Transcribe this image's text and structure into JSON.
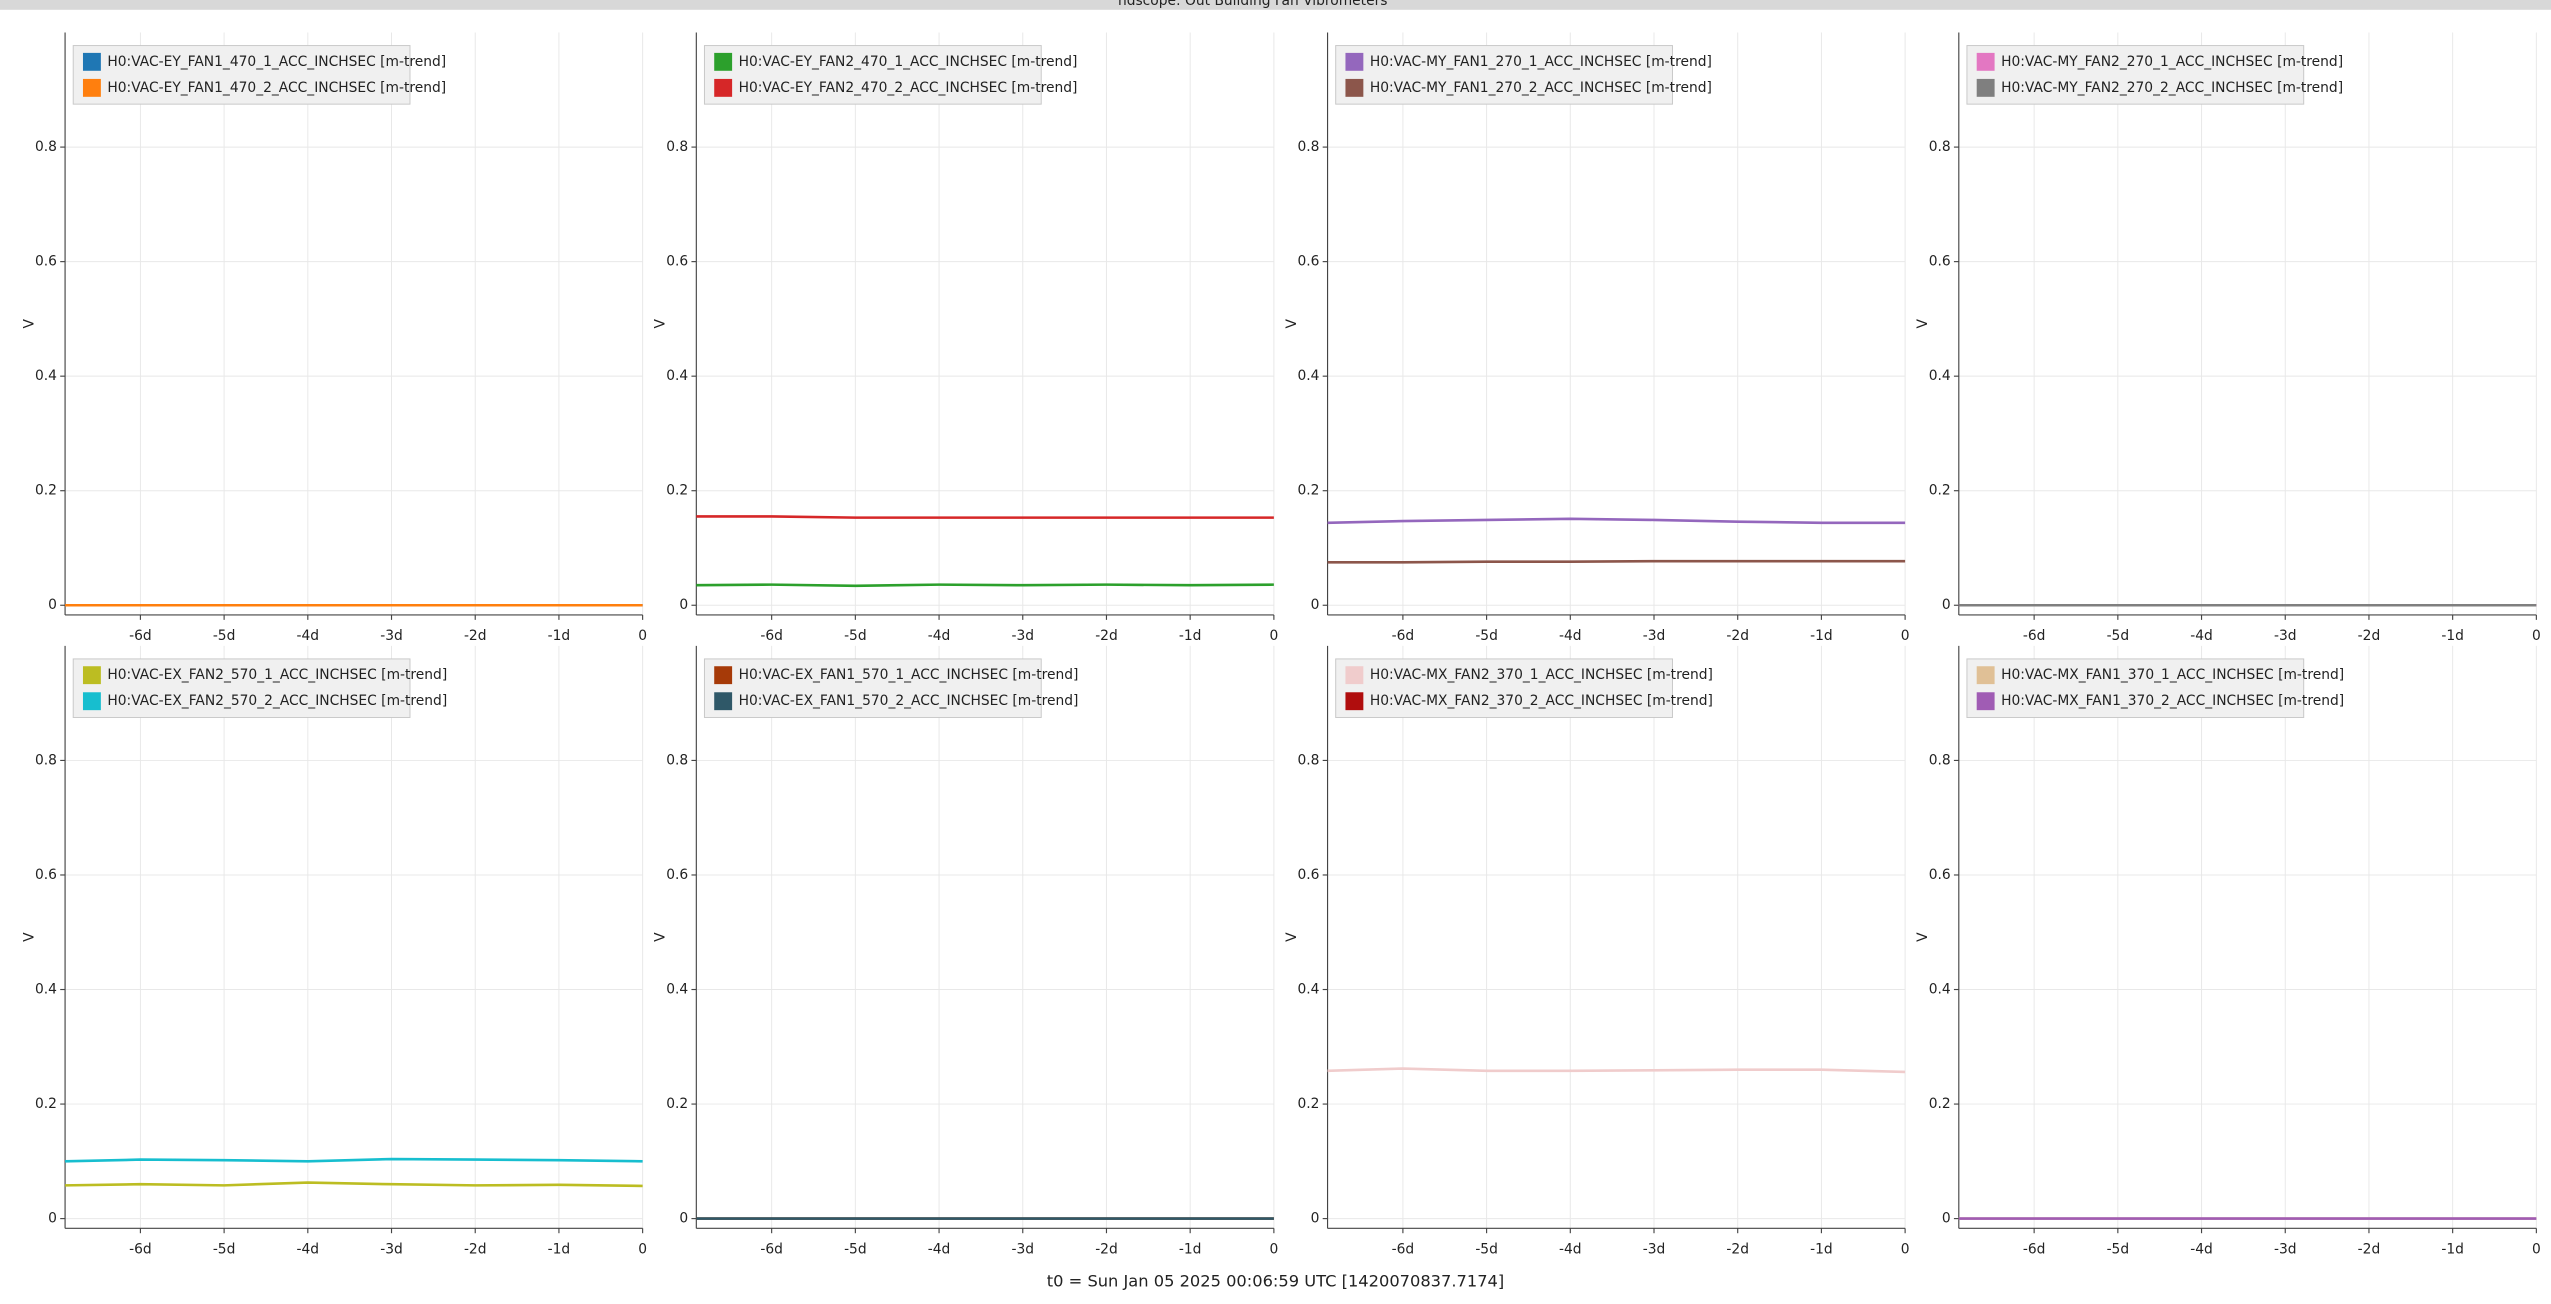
{
  "window_title": "ndscope: Out Building Fan Vibrometers",
  "footer": "t0 = Sun Jan 05 2025 00:06:59 UTC [1420070837.7174]",
  "chart_data": [
    {
      "type": "line",
      "ylabel": "V",
      "xlim": [
        -6.9,
        0
      ],
      "ylim": [
        -0.017,
        1.0
      ],
      "grid": true,
      "legend": "upper left",
      "xticks": [
        {
          "value": -6,
          "label": "-6d"
        },
        {
          "value": -5,
          "label": "-5d"
        },
        {
          "value": -4,
          "label": "-4d"
        },
        {
          "value": -3,
          "label": "-3d"
        },
        {
          "value": -2,
          "label": "-2d"
        },
        {
          "value": -1,
          "label": "-1d"
        },
        0
      ],
      "yticks": [
        0,
        0.2,
        0.4,
        0.6,
        0.8
      ],
      "x": [
        -6.9,
        -6,
        -5,
        -4,
        -3,
        -2,
        -1,
        0
      ],
      "series": [
        {
          "name": "H0:VAC-EY_FAN1_470_1_ACC_INCHSEC [m-trend]",
          "color": "#1f77b4",
          "values": [
            0,
            0,
            0,
            0,
            0,
            0,
            0,
            0
          ]
        },
        {
          "name": "H0:VAC-EY_FAN1_470_2_ACC_INCHSEC [m-trend]",
          "color": "#ff7f0e",
          "values": [
            0,
            0,
            0,
            0,
            0,
            0,
            0,
            0
          ]
        }
      ]
    },
    {
      "type": "line",
      "ylabel": "V",
      "xlim": [
        -6.9,
        0
      ],
      "ylim": [
        -0.017,
        1.0
      ],
      "grid": true,
      "legend": "upper left",
      "xticks": [
        {
          "value": -6,
          "label": "-6d"
        },
        {
          "value": -5,
          "label": "-5d"
        },
        {
          "value": -4,
          "label": "-4d"
        },
        {
          "value": -3,
          "label": "-3d"
        },
        {
          "value": -2,
          "label": "-2d"
        },
        {
          "value": -1,
          "label": "-1d"
        },
        0
      ],
      "yticks": [
        0,
        0.2,
        0.4,
        0.6,
        0.8
      ],
      "x": [
        -6.9,
        -6,
        -5,
        -4,
        -3,
        -2,
        -1,
        0
      ],
      "series": [
        {
          "name": "H0:VAC-EY_FAN2_470_1_ACC_INCHSEC [m-trend]",
          "color": "#2ca02c",
          "values": [
            0.035,
            0.036,
            0.034,
            0.036,
            0.035,
            0.036,
            0.035,
            0.036
          ]
        },
        {
          "name": "H0:VAC-EY_FAN2_470_2_ACC_INCHSEC [m-trend]",
          "color": "#d62728",
          "values": [
            0.155,
            0.155,
            0.153,
            0.153,
            0.153,
            0.153,
            0.153,
            0.153
          ]
        }
      ]
    },
    {
      "type": "line",
      "ylabel": "V",
      "xlim": [
        -6.9,
        0
      ],
      "ylim": [
        -0.017,
        1.0
      ],
      "grid": true,
      "legend": "upper left",
      "xticks": [
        {
          "value": -6,
          "label": "-6d"
        },
        {
          "value": -5,
          "label": "-5d"
        },
        {
          "value": -4,
          "label": "-4d"
        },
        {
          "value": -3,
          "label": "-3d"
        },
        {
          "value": -2,
          "label": "-2d"
        },
        {
          "value": -1,
          "label": "-1d"
        },
        0
      ],
      "yticks": [
        0,
        0.2,
        0.4,
        0.6,
        0.8
      ],
      "x": [
        -6.9,
        -6,
        -5,
        -4,
        -3,
        -2,
        -1,
        0
      ],
      "series": [
        {
          "name": "H0:VAC-MY_FAN1_270_1_ACC_INCHSEC [m-trend]",
          "color": "#9467bd",
          "values": [
            0.144,
            0.147,
            0.149,
            0.151,
            0.149,
            0.146,
            0.144,
            0.144
          ]
        },
        {
          "name": "H0:VAC-MY_FAN1_270_2_ACC_INCHSEC [m-trend]",
          "color": "#8c564b",
          "values": [
            0.075,
            0.075,
            0.076,
            0.076,
            0.077,
            0.077,
            0.077,
            0.077
          ]
        }
      ]
    },
    {
      "type": "line",
      "ylabel": "V",
      "xlim": [
        -6.9,
        0
      ],
      "ylim": [
        -0.017,
        1.0
      ],
      "grid": true,
      "legend": "upper left",
      "xticks": [
        {
          "value": -6,
          "label": "-6d"
        },
        {
          "value": -5,
          "label": "-5d"
        },
        {
          "value": -4,
          "label": "-4d"
        },
        {
          "value": -3,
          "label": "-3d"
        },
        {
          "value": -2,
          "label": "-2d"
        },
        {
          "value": -1,
          "label": "-1d"
        },
        0
      ],
      "yticks": [
        0,
        0.2,
        0.4,
        0.6,
        0.8
      ],
      "x": [
        -6.9,
        -6,
        -5,
        -4,
        -3,
        -2,
        -1,
        0
      ],
      "series": [
        {
          "name": "H0:VAC-MY_FAN2_270_1_ACC_INCHSEC [m-trend]",
          "color": "#e377c2",
          "values": [
            0,
            0,
            0,
            0,
            0,
            0,
            0,
            0
          ]
        },
        {
          "name": "H0:VAC-MY_FAN2_270_2_ACC_INCHSEC [m-trend]",
          "color": "#7f7f7f",
          "values": [
            0,
            0,
            0,
            0,
            0,
            0,
            0,
            0
          ]
        }
      ]
    },
    {
      "type": "line",
      "ylabel": "V",
      "xlim": [
        -6.9,
        0
      ],
      "ylim": [
        -0.017,
        1.0
      ],
      "grid": true,
      "legend": "upper left",
      "xticks": [
        {
          "value": -6,
          "label": "-6d"
        },
        {
          "value": -5,
          "label": "-5d"
        },
        {
          "value": -4,
          "label": "-4d"
        },
        {
          "value": -3,
          "label": "-3d"
        },
        {
          "value": -2,
          "label": "-2d"
        },
        {
          "value": -1,
          "label": "-1d"
        },
        0
      ],
      "yticks": [
        0,
        0.2,
        0.4,
        0.6,
        0.8
      ],
      "x": [
        -6.9,
        -6,
        -5,
        -4,
        -3,
        -2,
        -1,
        0
      ],
      "series": [
        {
          "name": "H0:VAC-EX_FAN2_570_1_ACC_INCHSEC [m-trend]",
          "color": "#bcbd22",
          "values": [
            0.058,
            0.06,
            0.058,
            0.063,
            0.06,
            0.058,
            0.059,
            0.057
          ]
        },
        {
          "name": "H0:VAC-EX_FAN2_570_2_ACC_INCHSEC [m-trend]",
          "color": "#17becf",
          "values": [
            0.1,
            0.103,
            0.102,
            0.1,
            0.104,
            0.103,
            0.102,
            0.1
          ]
        }
      ]
    },
    {
      "type": "line",
      "ylabel": "V",
      "xlim": [
        -6.9,
        0
      ],
      "ylim": [
        -0.017,
        1.0
      ],
      "grid": true,
      "legend": "upper left",
      "xticks": [
        {
          "value": -6,
          "label": "-6d"
        },
        {
          "value": -5,
          "label": "-5d"
        },
        {
          "value": -4,
          "label": "-4d"
        },
        {
          "value": -3,
          "label": "-3d"
        },
        {
          "value": -2,
          "label": "-2d"
        },
        {
          "value": -1,
          "label": "-1d"
        },
        0
      ],
      "yticks": [
        0,
        0.2,
        0.4,
        0.6,
        0.8
      ],
      "x": [
        -6.9,
        -6,
        -5,
        -4,
        -3,
        -2,
        -1,
        0
      ],
      "series": [
        {
          "name": "H0:VAC-EX_FAN1_570_1_ACC_INCHSEC [m-trend]",
          "color": "#a63a08",
          "values": [
            0,
            0,
            0,
            0,
            0,
            0,
            0,
            0
          ]
        },
        {
          "name": "H0:VAC-EX_FAN1_570_2_ACC_INCHSEC [m-trend]",
          "color": "#2f5868",
          "values": [
            0,
            0,
            0,
            0,
            0,
            0,
            0,
            0
          ]
        }
      ]
    },
    {
      "type": "line",
      "ylabel": "V",
      "xlim": [
        -6.9,
        0
      ],
      "ylim": [
        -0.017,
        1.0
      ],
      "grid": true,
      "legend": "upper left",
      "xticks": [
        {
          "value": -6,
          "label": "-6d"
        },
        {
          "value": -5,
          "label": "-5d"
        },
        {
          "value": -4,
          "label": "-4d"
        },
        {
          "value": -3,
          "label": "-3d"
        },
        {
          "value": -2,
          "label": "-2d"
        },
        {
          "value": -1,
          "label": "-1d"
        },
        0
      ],
      "yticks": [
        0,
        0.2,
        0.4,
        0.6,
        0.8
      ],
      "x": [
        -6.9,
        -6,
        -5,
        -4,
        -3,
        -2,
        -1,
        0
      ],
      "series": [
        {
          "name": "H0:VAC-MX_FAN2_370_1_ACC_INCHSEC [m-trend]",
          "color": "#f0cccc",
          "values": [
            0.258,
            0.262,
            0.258,
            0.258,
            0.259,
            0.26,
            0.26,
            0.256
          ]
        },
        {
          "name": "H0:VAC-MX_FAN2_370_2_ACC_INCHSEC [m-trend]",
          "color": "#b00d0d",
          "values": [
            null,
            null,
            null,
            null,
            null,
            null,
            null,
            null
          ]
        }
      ]
    },
    {
      "type": "line",
      "ylabel": "V",
      "xlim": [
        -6.9,
        0
      ],
      "ylim": [
        -0.017,
        1.0
      ],
      "grid": true,
      "legend": "upper left",
      "xticks": [
        {
          "value": -6,
          "label": "-6d"
        },
        {
          "value": -5,
          "label": "-5d"
        },
        {
          "value": -4,
          "label": "-4d"
        },
        {
          "value": -3,
          "label": "-3d"
        },
        {
          "value": -2,
          "label": "-2d"
        },
        {
          "value": -1,
          "label": "-1d"
        },
        0
      ],
      "yticks": [
        0,
        0.2,
        0.4,
        0.6,
        0.8
      ],
      "x": [
        -6.9,
        -6,
        -5,
        -4,
        -3,
        -2,
        -1,
        0
      ],
      "series": [
        {
          "name": "H0:VAC-MX_FAN1_370_1_ACC_INCHSEC [m-trend]",
          "color": "#e0c096",
          "values": [
            0,
            0,
            0,
            0,
            0,
            0,
            0,
            0
          ]
        },
        {
          "name": "H0:VAC-MX_FAN1_370_2_ACC_INCHSEC [m-trend]",
          "color": "#a05cb4",
          "values": [
            0,
            0,
            0,
            0,
            0,
            0,
            0,
            0
          ]
        }
      ]
    }
  ]
}
